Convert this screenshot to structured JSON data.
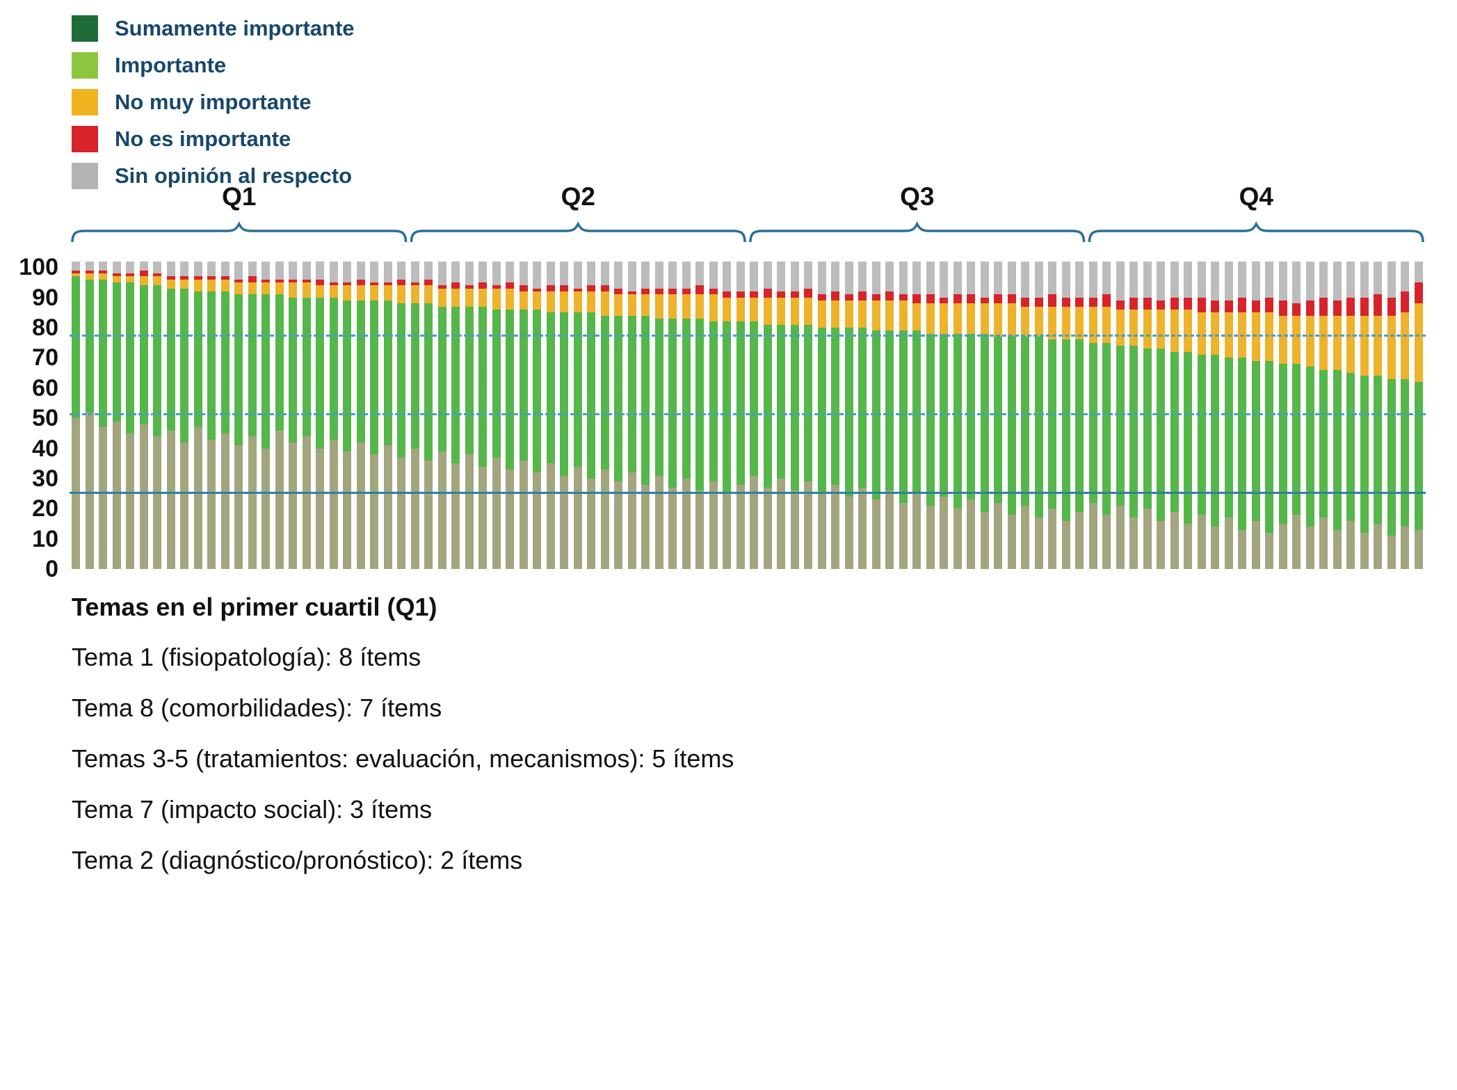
{
  "page": {
    "background": "#ffffff",
    "legend_text_color": "#17486b",
    "axis_text_color": "#111111"
  },
  "quartiles": {
    "labels": [
      "Q1",
      "Q2",
      "Q3",
      "Q4"
    ],
    "bracket_color": "#2a6f96"
  },
  "notes": {
    "title": "Temas en el primer cuartil (Q1)",
    "lines": [
      "Tema 1 (fisiopatología): 8 ítems",
      "Tema 8 (comorbilidades): 7 ítems",
      "Temas 3-5 (tratamientos: evaluación, mecanismos): 5 ítems",
      "Tema 7 (impacto social): 3 ítems",
      "Tema 2 (diagnóstico/pronóstico): 2 ítems"
    ]
  },
  "chart_data": {
    "type": "bar",
    "stacked": true,
    "n_bars": 100,
    "title": "",
    "xlabel": "",
    "ylabel": "",
    "ylim": [
      0,
      100
    ],
    "yticks": [
      0,
      10,
      20,
      30,
      40,
      50,
      60,
      70,
      80,
      90,
      100
    ],
    "bar_total": 102,
    "legend_position": "top-left",
    "grid": false,
    "reference_lines": [
      {
        "y": 77,
        "style": "dashed",
        "color": "#4a9dc7"
      },
      {
        "y": 51,
        "style": "dashed",
        "color": "#4a9dc7"
      },
      {
        "y": 25,
        "style": "solid",
        "color": "#2f7fa3"
      }
    ],
    "series": [
      {
        "name": "Sumamente importante",
        "legend_color": "#1f6c38",
        "bar_color": "#a3a57f",
        "values": [
          50,
          52,
          47,
          49,
          45,
          48,
          44,
          46,
          42,
          47,
          43,
          45,
          41,
          44,
          40,
          46,
          42,
          44,
          40,
          43,
          39,
          42,
          38,
          41,
          37,
          40,
          36,
          39,
          35,
          38,
          34,
          37,
          33,
          36,
          32,
          35,
          31,
          34,
          30,
          33,
          29,
          32,
          28,
          31,
          27,
          30,
          26,
          29,
          25,
          28,
          31,
          27,
          30,
          26,
          29,
          25,
          28,
          24,
          27,
          23,
          26,
          22,
          25,
          21,
          24,
          20,
          23,
          19,
          22,
          18,
          21,
          17,
          20,
          16,
          19,
          22,
          18,
          21,
          17,
          20,
          16,
          19,
          15,
          18,
          14,
          17,
          13,
          16,
          12,
          15,
          18,
          14,
          17,
          13,
          16,
          12,
          15,
          11,
          14,
          13
        ]
      },
      {
        "name": "Importante",
        "legend_color": "#8cc63f",
        "bar_color": "#55b64a",
        "values": [
          47,
          44,
          49,
          46,
          50,
          46,
          50,
          47,
          51,
          45,
          49,
          47,
          50,
          47,
          51,
          45,
          48,
          46,
          50,
          47,
          50,
          47,
          51,
          48,
          51,
          48,
          52,
          48,
          52,
          49,
          53,
          49,
          53,
          50,
          54,
          50,
          54,
          51,
          55,
          51,
          55,
          52,
          56,
          52,
          56,
          53,
          57,
          53,
          57,
          54,
          51,
          54,
          51,
          55,
          52,
          55,
          52,
          56,
          53,
          56,
          53,
          57,
          54,
          57,
          54,
          58,
          55,
          59,
          55,
          59,
          56,
          60,
          56,
          60,
          57,
          53,
          57,
          53,
          57,
          53,
          57,
          53,
          57,
          53,
          57,
          53,
          57,
          53,
          57,
          53,
          50,
          53,
          49,
          53,
          49,
          52,
          49,
          52,
          49,
          49
        ]
      },
      {
        "name": "No muy importante",
        "legend_color": "#efb320",
        "bar_color": "#edb32b",
        "values": [
          1,
          2,
          2,
          2,
          2,
          3,
          3,
          3,
          3,
          4,
          4,
          4,
          4,
          4,
          4,
          4,
          5,
          5,
          4,
          4,
          5,
          5,
          5,
          5,
          6,
          6,
          6,
          6,
          6,
          6,
          6,
          7,
          7,
          6,
          6,
          7,
          7,
          7,
          7,
          8,
          7,
          7,
          7,
          8,
          8,
          8,
          8,
          9,
          8,
          8,
          8,
          9,
          9,
          9,
          9,
          9,
          9,
          9,
          9,
          10,
          10,
          10,
          9,
          10,
          10,
          10,
          10,
          10,
          11,
          11,
          10,
          10,
          11,
          11,
          11,
          12,
          12,
          12,
          12,
          13,
          13,
          14,
          14,
          14,
          14,
          15,
          15,
          16,
          16,
          16,
          16,
          17,
          18,
          18,
          19,
          20,
          20,
          21,
          22,
          26
        ]
      },
      {
        "name": "No es importante",
        "legend_color": "#d8232b",
        "bar_color": "#d8232b",
        "values": [
          1,
          1,
          1,
          1,
          1,
          2,
          1,
          1,
          1,
          1,
          1,
          1,
          1,
          2,
          1,
          1,
          1,
          1,
          2,
          1,
          1,
          2,
          1,
          1,
          2,
          1,
          2,
          1,
          2,
          1,
          2,
          1,
          2,
          2,
          1,
          2,
          2,
          1,
          2,
          2,
          2,
          1,
          2,
          2,
          2,
          2,
          3,
          2,
          2,
          2,
          2,
          3,
          2,
          2,
          3,
          2,
          3,
          2,
          3,
          2,
          3,
          2,
          3,
          3,
          2,
          3,
          3,
          2,
          3,
          3,
          3,
          3,
          4,
          3,
          3,
          3,
          4,
          3,
          4,
          4,
          3,
          4,
          4,
          5,
          4,
          4,
          5,
          4,
          5,
          5,
          4,
          5,
          6,
          5,
          6,
          6,
          7,
          6,
          7,
          7
        ]
      },
      {
        "name": "Sin opinión al respecto",
        "legend_color": "#b3b3b3",
        "bar_color": "#bcbcbc",
        "values": [
          3,
          3,
          3,
          4,
          4,
          3,
          4,
          5,
          5,
          5,
          5,
          5,
          6,
          5,
          6,
          6,
          6,
          6,
          6,
          7,
          7,
          6,
          7,
          7,
          6,
          7,
          6,
          8,
          7,
          8,
          7,
          8,
          7,
          8,
          9,
          8,
          8,
          9,
          8,
          8,
          9,
          10,
          9,
          9,
          9,
          9,
          8,
          9,
          10,
          10,
          10,
          9,
          10,
          10,
          9,
          11,
          10,
          11,
          10,
          11,
          10,
          11,
          11,
          11,
          12,
          11,
          11,
          12,
          11,
          11,
          12,
          12,
          11,
          12,
          12,
          12,
          11,
          13,
          12,
          12,
          13,
          12,
          12,
          12,
          13,
          13,
          12,
          13,
          12,
          13,
          14,
          13,
          12,
          13,
          12,
          12,
          11,
          12,
          10,
          7
        ]
      }
    ]
  }
}
